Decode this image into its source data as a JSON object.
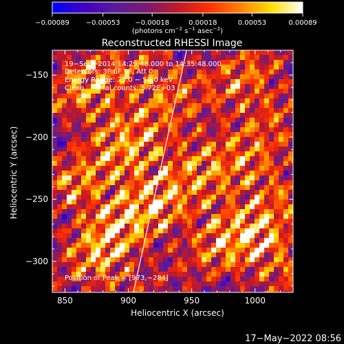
{
  "chart_data": {
    "type": "heatmap",
    "title": "Reconstructed RHESSI Image",
    "xlabel": "Heliocentric X (arcsec)",
    "ylabel": "Heliocentric Y (arcsec)",
    "xlim": [
      840,
      1030
    ],
    "ylim": [
      -325,
      -130
    ],
    "x_ticks": [
      850,
      900,
      950,
      1000
    ],
    "x_tick_labels": [
      "850",
      "900",
      "950",
      "1000"
    ],
    "y_ticks": [
      -150,
      -200,
      -250,
      -300
    ],
    "y_tick_labels": [
      "−150",
      "−200",
      "−250",
      "−300"
    ],
    "colorbar": {
      "range": [
        -0.00089,
        0.00089
      ],
      "ticks": [
        -0.00089,
        -0.00053,
        -0.00018,
        0.00018,
        0.00053,
        0.00089
      ],
      "tick_labels": [
        "−0.00089",
        "−0.00053",
        "−0.00018",
        "0.00018",
        "0.00053",
        "0.00089"
      ],
      "unit_prefix": "(photons cm",
      "unit_exp1": "−2",
      "unit_mid1": " s",
      "unit_exp2": "−1",
      "unit_mid2": " asec",
      "unit_exp3": "−2",
      "unit_suffix": ")",
      "colors": [
        "#0000ff",
        "#4000c0",
        "#5a1a9e",
        "#7a1a70",
        "#c0182a",
        "#ff3000",
        "#ff8000",
        "#ffe000",
        "#ffffff"
      ]
    },
    "info_lines": [
      "19−Sep−2014 14:29:48.000 to 14:35:48.000",
      "Detectors: 3F 6F 9F, Att 0",
      "Energy Range: 25.0 − 50.0 keV",
      "Clean     Total counts: 5.72E+03"
    ],
    "peak_label": "Position of Peak = [973,−284]",
    "limb_line": [
      [
        904,
        -325
      ],
      [
        946,
        -130
      ]
    ]
  },
  "timestamp": "17−May−2022 08:56"
}
